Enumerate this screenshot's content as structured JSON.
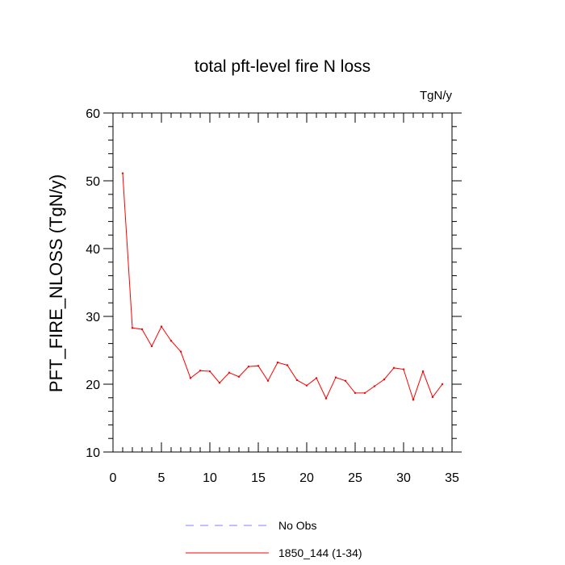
{
  "chart_data": {
    "type": "line",
    "title": "total pft-level fire N loss",
    "units_label": "TgN/y",
    "xlabel": "",
    "ylabel": "PFT_FIRE_NLOSS  (TgN/y)",
    "xlim": [
      0,
      35
    ],
    "ylim": [
      10,
      60
    ],
    "x_ticks": [
      0,
      5,
      10,
      15,
      20,
      25,
      30,
      35
    ],
    "y_ticks": [
      10,
      20,
      30,
      40,
      50,
      60
    ],
    "grid": false,
    "legend_position": "bottom-center",
    "series": [
      {
        "name": "No Obs",
        "color": "#8080ff",
        "dash": "dashed",
        "x": [],
        "values": []
      },
      {
        "name": "1850_144 (1-34)",
        "color": "#ff0000",
        "dash": "solid",
        "x": [
          1,
          2,
          3,
          4,
          5,
          6,
          7,
          8,
          9,
          10,
          11,
          12,
          13,
          14,
          15,
          16,
          17,
          18,
          19,
          20,
          21,
          22,
          23,
          24,
          25,
          26,
          27,
          28,
          29,
          30,
          31,
          32,
          33,
          34
        ],
        "values": [
          51.1,
          28.3,
          28.1,
          25.6,
          28.5,
          26.4,
          24.8,
          20.9,
          22.0,
          21.9,
          20.2,
          21.7,
          21.1,
          22.6,
          22.7,
          20.5,
          23.2,
          22.8,
          20.6,
          19.8,
          20.9,
          17.9,
          21.0,
          20.5,
          18.7,
          18.7,
          19.7,
          20.7,
          22.4,
          22.2,
          17.7,
          21.9,
          18.1,
          20.0
        ]
      }
    ]
  }
}
